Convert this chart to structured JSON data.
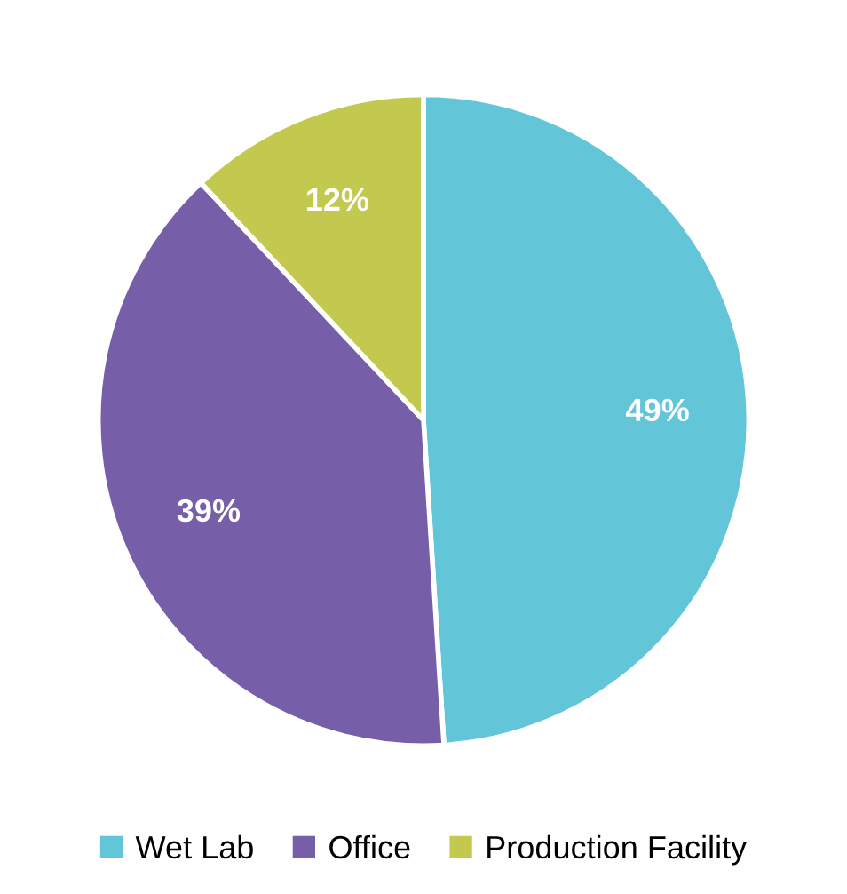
{
  "chart_data": {
    "type": "pie",
    "categories": [
      "Wet Lab",
      "Office",
      "Production Facility"
    ],
    "values": [
      49,
      39,
      12
    ],
    "colors": [
      "#63c5d8",
      "#765fa8",
      "#c3c84e"
    ],
    "value_labels": [
      "49%",
      "39%",
      "12%"
    ],
    "legend": "bottom"
  }
}
